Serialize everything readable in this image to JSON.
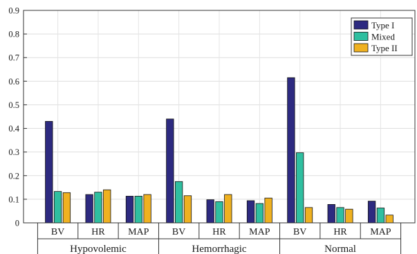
{
  "chart_data": {
    "type": "bar",
    "title": "",
    "xlabel": "",
    "ylabel": "",
    "ylim": [
      0,
      0.9
    ],
    "yticks": [
      "0",
      "0.1",
      "0.2",
      "0.3",
      "0.4",
      "0.5",
      "0.6",
      "0.7",
      "0.8",
      "0.9"
    ],
    "grid": true,
    "legend_position": "top-right",
    "groups": [
      "Hypovolemic",
      "Hemorrhagic",
      "Normal"
    ],
    "categories": [
      "BV",
      "HR",
      "MAP",
      "BV",
      "HR",
      "MAP",
      "BV",
      "HR",
      "MAP"
    ],
    "series": [
      {
        "name": "Type I",
        "color": "#2d2a80",
        "values": [
          0.43,
          0.12,
          0.113,
          0.44,
          0.098,
          0.094,
          0.615,
          0.078,
          0.092
        ]
      },
      {
        "name": "Mixed",
        "color": "#2fbfa0",
        "values": [
          0.133,
          0.13,
          0.113,
          0.175,
          0.09,
          0.082,
          0.297,
          0.065,
          0.063
        ]
      },
      {
        "name": "Type II",
        "color": "#efb120",
        "values": [
          0.128,
          0.14,
          0.12,
          0.115,
          0.12,
          0.105,
          0.065,
          0.058,
          0.033
        ]
      }
    ]
  }
}
